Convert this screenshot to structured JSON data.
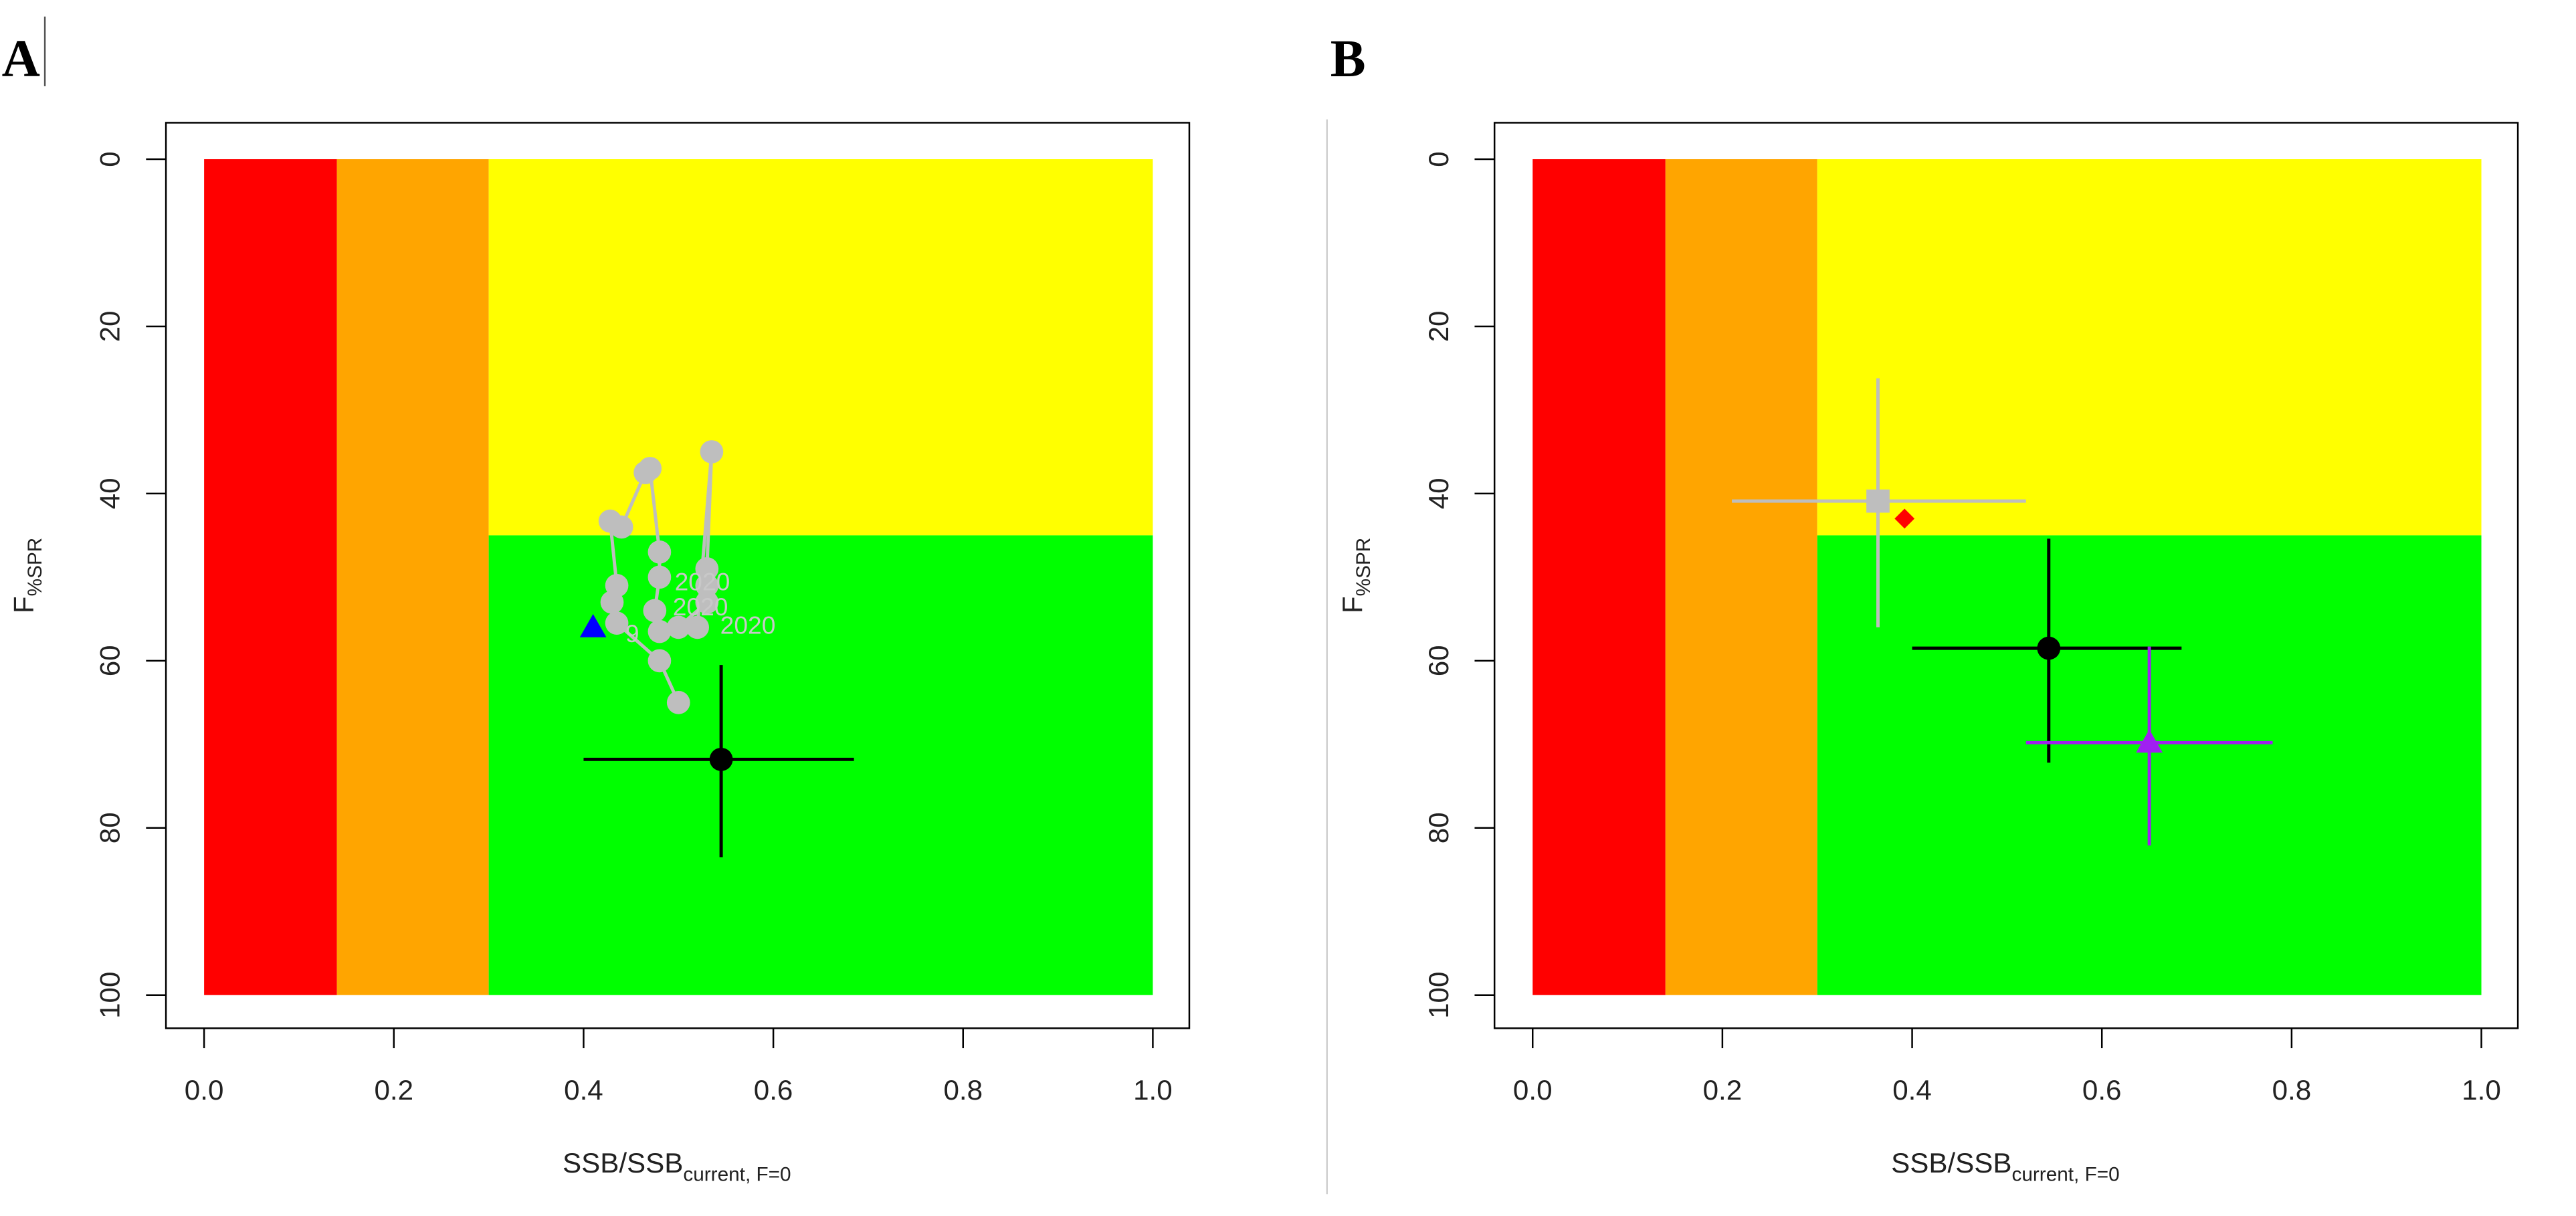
{
  "chart_data": [
    {
      "type": "scatter",
      "panel": "A",
      "xlabel": "SSB/SSB",
      "xlabel_sub": "current, F=0",
      "ylabel": "F",
      "ylabel_sub": "%SPR",
      "xlim": [
        0,
        1
      ],
      "ylim": [
        0,
        100
      ],
      "y_inverted": true,
      "xticks": [
        {
          "value": 0,
          "label": "0.0"
        },
        0.2,
        0.4,
        0.6,
        0.8,
        {
          "value": 1,
          "label": "1.0"
        }
      ],
      "yticks": [
        0,
        20,
        40,
        60,
        80,
        100
      ],
      "zones": [
        {
          "x": [
            0,
            0.14
          ],
          "y": [
            0,
            100
          ],
          "color": "#ff0000"
        },
        {
          "x": [
            0.14,
            0.3
          ],
          "y": [
            0,
            100
          ],
          "color": "#ffa500"
        },
        {
          "x": [
            0.3,
            1
          ],
          "y": [
            0,
            45
          ],
          "color": "#ffff00"
        },
        {
          "x": [
            0.3,
            1
          ],
          "y": [
            45,
            100
          ],
          "color": "#00ff00"
        }
      ],
      "series": [
        {
          "color": "#bebebe",
          "marker": "circle",
          "line": true,
          "x": [
            0.5,
            0.48,
            0.435,
            0.43,
            0.435,
            0.428,
            0.44,
            0.465,
            0.47,
            0.48,
            0.48,
            0.475,
            0.48,
            0.5,
            0.53,
            0.53,
            0.53,
            0.535,
            0.52
          ],
          "values": [
            65,
            60,
            55.5,
            53,
            51,
            43.3,
            44,
            37.5,
            37,
            47,
            50,
            54,
            56.5,
            56,
            53,
            51,
            49,
            35,
            56
          ]
        },
        {
          "color": "#0000ff",
          "marker": "triangle",
          "x": [
            0.41
          ],
          "values": [
            56
          ]
        },
        {
          "color": "#000000",
          "marker": "circle",
          "x": [
            0.545
          ],
          "values": [
            71.8
          ],
          "xbounds": [
            [
              0.4,
              0.685
            ]
          ],
          "ybounds": [
            [
              60.5,
              83.5
            ]
          ]
        }
      ],
      "annotations": [
        {
          "text": "2020",
          "x": 0.496,
          "y": 50.8
        },
        {
          "text": "2020",
          "x": 0.494,
          "y": 53.8
        },
        {
          "text": "2020",
          "x": 0.544,
          "y": 56
        },
        {
          "text": "9",
          "x": 0.444,
          "y": 57
        }
      ]
    },
    {
      "type": "scatter",
      "panel": "B",
      "xlabel": "SSB/SSB",
      "xlabel_sub": "current, F=0",
      "ylabel": "F",
      "ylabel_sub": "%SPR",
      "xlim": [
        0,
        1
      ],
      "ylim": [
        0,
        100
      ],
      "y_inverted": true,
      "xticks": [
        {
          "value": 0,
          "label": "0.0"
        },
        0.2,
        0.4,
        0.6,
        0.8,
        {
          "value": 1,
          "label": "1.0"
        }
      ],
      "yticks": [
        0,
        20,
        40,
        60,
        80,
        100
      ],
      "zones": [
        {
          "x": [
            0,
            0.14
          ],
          "y": [
            0,
            100
          ],
          "color": "#ff0000"
        },
        {
          "x": [
            0.14,
            0.3
          ],
          "y": [
            0,
            100
          ],
          "color": "#ffa500"
        },
        {
          "x": [
            0.3,
            1
          ],
          "y": [
            0,
            45
          ],
          "color": "#ffff00"
        },
        {
          "x": [
            0.3,
            1
          ],
          "y": [
            45,
            100
          ],
          "color": "#00ff00"
        }
      ],
      "series": [
        {
          "color": "#bebebe",
          "marker": "square",
          "x": [
            0.364
          ],
          "values": [
            40.9
          ],
          "xbounds": [
            [
              0.21,
              0.52
            ]
          ],
          "ybounds": [
            [
              26.2,
              56
            ]
          ]
        },
        {
          "color": "#ff0000",
          "marker": "diamond",
          "x": [
            0.392
          ],
          "values": [
            43
          ]
        },
        {
          "color": "#000000",
          "marker": "circle",
          "x": [
            0.544
          ],
          "values": [
            58.5
          ],
          "xbounds": [
            [
              0.4,
              0.684
            ]
          ],
          "ybounds": [
            [
              45.4,
              72.2
            ]
          ]
        },
        {
          "color": "#a020f0",
          "marker": "triangle",
          "x": [
            0.65
          ],
          "values": [
            69.8
          ],
          "xbounds": [
            [
              0.52,
              0.78
            ]
          ],
          "ybounds": [
            [
              58.3,
              82.1
            ]
          ]
        }
      ]
    }
  ]
}
